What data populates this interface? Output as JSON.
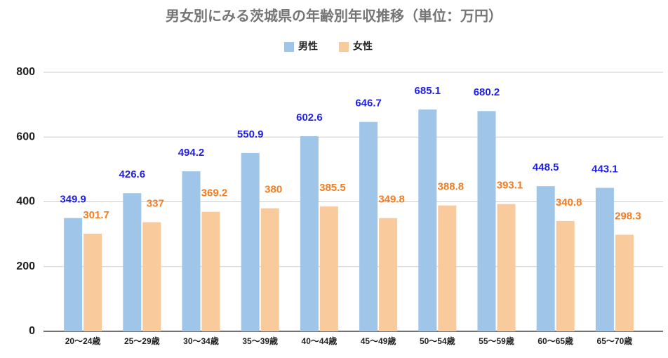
{
  "chart_data": {
    "type": "bar",
    "title": "男女別にみる茨城県の年齢別年収推移（単位：万円）",
    "categories": [
      "20〜24歳",
      "25〜29歳",
      "30〜34歳",
      "35〜39歳",
      "40〜44歳",
      "45〜49歳",
      "50〜54歳",
      "55〜59歳",
      "60〜65歳",
      "65〜70歳"
    ],
    "series": [
      {
        "name": "男性",
        "color": "#9fc5e8",
        "label_color": "#1f1fe6",
        "values": [
          349.9,
          426.6,
          494.2,
          550.9,
          602.6,
          646.7,
          685.1,
          680.2,
          448.5,
          443.1
        ]
      },
      {
        "name": "女性",
        "color": "#f9cb9c",
        "label_color": "#f57c1f",
        "values": [
          301.7,
          337,
          369.2,
          380,
          385.5,
          349.8,
          388.8,
          393.1,
          340.8,
          298.3
        ]
      }
    ],
    "ylim": [
      0,
      800
    ],
    "yticks": [
      0,
      200,
      400,
      600,
      800
    ],
    "grid": true,
    "legend": "top"
  }
}
